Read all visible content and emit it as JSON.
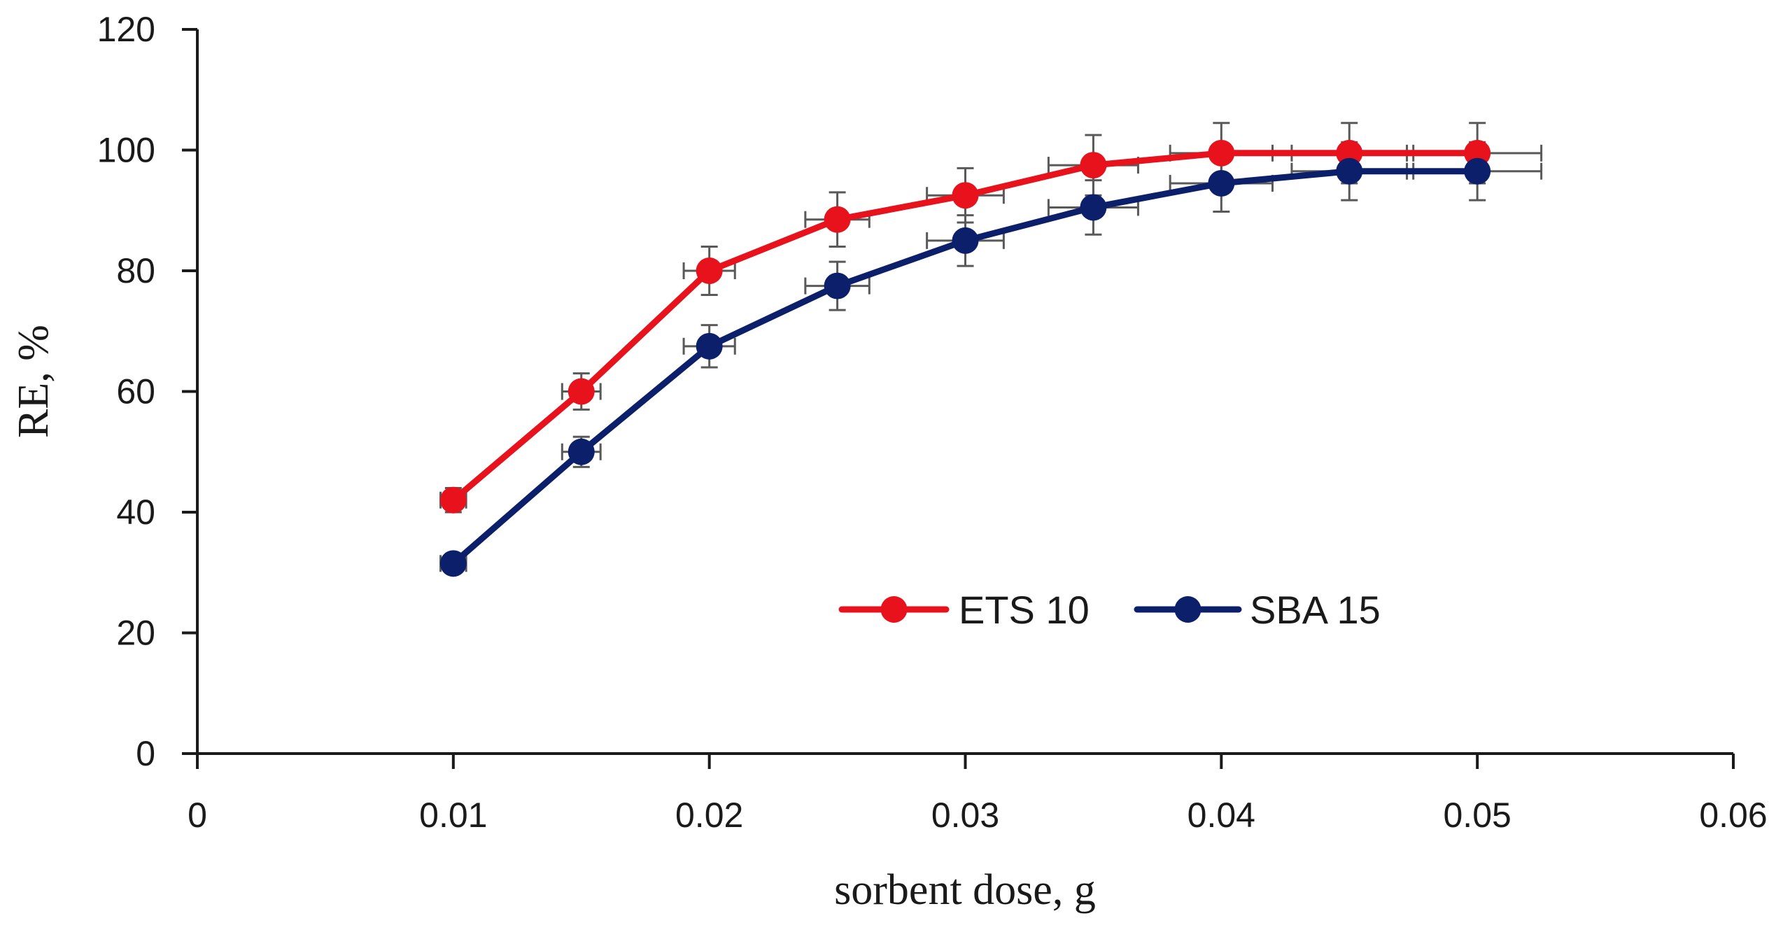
{
  "chart_data": {
    "type": "line",
    "title": "",
    "xlabel": "sorbent dose, g",
    "ylabel": "RE, %",
    "xlim": [
      0,
      0.06
    ],
    "ylim": [
      0,
      120
    ],
    "xticks": [
      0,
      0.01,
      0.02,
      0.03,
      0.04,
      0.05,
      0.06
    ],
    "xtick_labels": [
      "0",
      "0.01",
      "0.02",
      "0.03",
      "0.04",
      "0.05",
      "0.06"
    ],
    "yticks": [
      0,
      20,
      40,
      60,
      80,
      100,
      120
    ],
    "ytick_labels": [
      "0",
      "20",
      "40",
      "60",
      "80",
      "100",
      "120"
    ],
    "grid": false,
    "legend_position": "center-right",
    "series": [
      {
        "name": "ETS 10",
        "color": "#e8121c",
        "x": [
          0.01,
          0.015,
          0.02,
          0.025,
          0.03,
          0.035,
          0.04,
          0.045,
          0.05
        ],
        "y": [
          42,
          60,
          80,
          88.5,
          92.5,
          97.5,
          99.5,
          99.5,
          99.5
        ],
        "yerr": [
          2,
          3,
          4,
          4.5,
          4.5,
          5,
          5,
          5,
          5
        ],
        "xerr": [
          0.0005,
          0.00075,
          0.001,
          0.00125,
          0.0015,
          0.00175,
          0.002,
          0.00225,
          0.0025
        ]
      },
      {
        "name": "SBA 15",
        "color": "#0c1f6b",
        "x": [
          0.01,
          0.015,
          0.02,
          0.025,
          0.03,
          0.035,
          0.04,
          0.045,
          0.05
        ],
        "y": [
          31.5,
          50,
          67.5,
          77.5,
          85,
          90.5,
          94.5,
          96.5,
          96.5
        ],
        "yerr": [
          1.5,
          2.5,
          3.5,
          4,
          4.2,
          4.5,
          4.7,
          4.8,
          4.8
        ],
        "xerr": [
          0.0005,
          0.00075,
          0.001,
          0.00125,
          0.0015,
          0.00175,
          0.002,
          0.00225,
          0.0025
        ]
      }
    ]
  }
}
